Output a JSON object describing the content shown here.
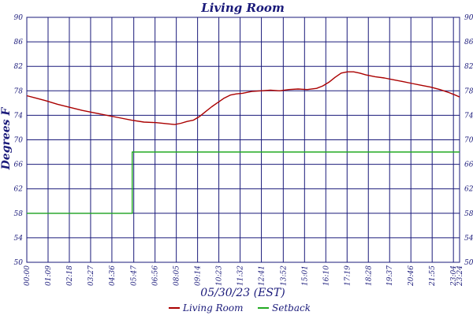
{
  "chart_data": {
    "type": "line",
    "title": "Living Room",
    "xlabel": "05/30/23 (EST)",
    "ylabel": "Degrees F",
    "ylim": [
      50,
      90
    ],
    "yticks": [
      50,
      54,
      58,
      62,
      66,
      70,
      74,
      78,
      82,
      86,
      90
    ],
    "xlim": [
      0,
      1404
    ],
    "xticks": [
      {
        "minute": 0,
        "label": "00:00"
      },
      {
        "minute": 69,
        "label": "01:09"
      },
      {
        "minute": 138,
        "label": "02:18"
      },
      {
        "minute": 207,
        "label": "03:27"
      },
      {
        "minute": 276,
        "label": "04:36"
      },
      {
        "minute": 347,
        "label": "05:47"
      },
      {
        "minute": 416,
        "label": "06:56"
      },
      {
        "minute": 485,
        "label": "08:05"
      },
      {
        "minute": 554,
        "label": "09:14"
      },
      {
        "minute": 623,
        "label": "10:23"
      },
      {
        "minute": 692,
        "label": "11:32"
      },
      {
        "minute": 761,
        "label": "12:41"
      },
      {
        "minute": 832,
        "label": "13:52"
      },
      {
        "minute": 901,
        "label": "15:01"
      },
      {
        "minute": 970,
        "label": "16:10"
      },
      {
        "minute": 1039,
        "label": "17:19"
      },
      {
        "minute": 1108,
        "label": "18:28"
      },
      {
        "minute": 1177,
        "label": "19:37"
      },
      {
        "minute": 1246,
        "label": "20:46"
      },
      {
        "minute": 1315,
        "label": "21:55"
      },
      {
        "minute": 1384,
        "label": "23:04"
      },
      {
        "minute": 1404,
        "label": "23:24"
      }
    ],
    "grid": true,
    "legend_position": "bottom",
    "series": [
      {
        "name": "Living Room",
        "color": "#aa0000",
        "points": [
          [
            0,
            77.2
          ],
          [
            30,
            76.8
          ],
          [
            60,
            76.4
          ],
          [
            100,
            75.8
          ],
          [
            140,
            75.3
          ],
          [
            180,
            74.8
          ],
          [
            220,
            74.4
          ],
          [
            260,
            74.0
          ],
          [
            300,
            73.6
          ],
          [
            340,
            73.2
          ],
          [
            380,
            72.9
          ],
          [
            420,
            72.8
          ],
          [
            460,
            72.6
          ],
          [
            480,
            72.5
          ],
          [
            500,
            72.7
          ],
          [
            520,
            73.0
          ],
          [
            540,
            73.2
          ],
          [
            560,
            73.8
          ],
          [
            580,
            74.6
          ],
          [
            600,
            75.4
          ],
          [
            620,
            76.1
          ],
          [
            640,
            76.8
          ],
          [
            660,
            77.3
          ],
          [
            680,
            77.5
          ],
          [
            700,
            77.6
          ],
          [
            730,
            77.9
          ],
          [
            760,
            78.0
          ],
          [
            790,
            78.1
          ],
          [
            820,
            78.0
          ],
          [
            850,
            78.2
          ],
          [
            880,
            78.3
          ],
          [
            910,
            78.2
          ],
          [
            940,
            78.4
          ],
          [
            960,
            78.8
          ],
          [
            980,
            79.4
          ],
          [
            1000,
            80.2
          ],
          [
            1020,
            80.9
          ],
          [
            1040,
            81.1
          ],
          [
            1060,
            81.1
          ],
          [
            1080,
            80.9
          ],
          [
            1100,
            80.6
          ],
          [
            1130,
            80.3
          ],
          [
            1160,
            80.1
          ],
          [
            1190,
            79.8
          ],
          [
            1220,
            79.5
          ],
          [
            1250,
            79.2
          ],
          [
            1280,
            78.9
          ],
          [
            1310,
            78.6
          ],
          [
            1340,
            78.2
          ],
          [
            1370,
            77.7
          ],
          [
            1390,
            77.3
          ],
          [
            1404,
            77.0
          ]
        ]
      },
      {
        "name": "Setback",
        "color": "#22aa22",
        "points": [
          [
            0,
            58
          ],
          [
            342,
            58
          ],
          [
            342,
            68
          ],
          [
            1404,
            68
          ]
        ]
      }
    ]
  }
}
